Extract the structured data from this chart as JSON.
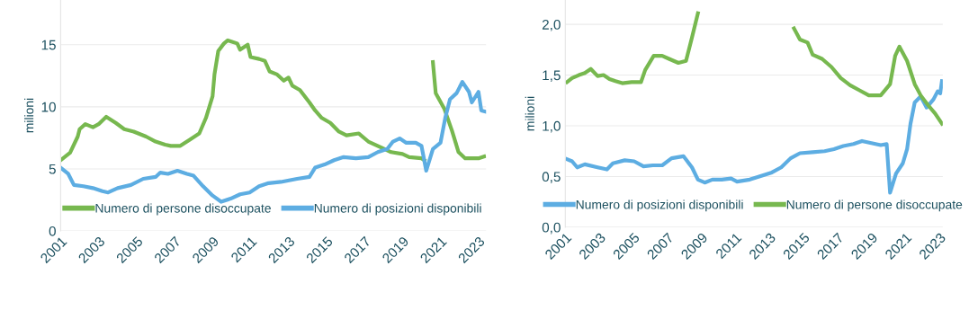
{
  "chart_data": [
    {
      "type": "line",
      "ylabel": "milioni",
      "xlim": [
        2001,
        2023.4
      ],
      "ylim": [
        0,
        18.6
      ],
      "xticks": [
        2001,
        2003,
        2005,
        2007,
        2009,
        2011,
        2013,
        2015,
        2017,
        2019,
        2021,
        2023
      ],
      "yticks": [
        0,
        5,
        10,
        15
      ],
      "grid": "y",
      "legend": "bottom",
      "line_style": "solid",
      "marker": "none",
      "series": [
        {
          "name": "Numero di persone disoccupate",
          "color": "#77b84f",
          "x": [
            2001,
            2001.5,
            2001.9,
            2002.0,
            2002.3,
            2002.7,
            2003.0,
            2003.4,
            2003.9,
            2004.35,
            2004.85,
            2005.5,
            2006.0,
            2006.5,
            2006.8,
            2007.3,
            2007.8,
            2008.3,
            2008.65,
            2009.0,
            2009.1,
            2009.3,
            2009.6,
            2009.8,
            2010.3,
            2010.45,
            2010.85,
            2011.0,
            2011.45,
            2011.75,
            2012.0,
            2012.4,
            2012.75,
            2013.0,
            2013.2,
            2013.6,
            2014.1,
            2014.4,
            2014.75,
            2015.2,
            2015.65,
            2016.05,
            2016.7,
            2017.2,
            2017.9,
            2018.4,
            2019.0,
            2019.35,
            2020.0,
            2020.15,
            2020.2,
            2020.4,
            2020.6,
            2020.75,
            2021.2,
            2021.6,
            2021.95,
            2022.3,
            2022.7,
            2023.0,
            2023.3
          ],
          "values": [
            5.7,
            6.3,
            7.6,
            8.2,
            8.6,
            8.35,
            8.6,
            9.2,
            8.7,
            8.2,
            8.0,
            7.6,
            7.2,
            6.95,
            6.85,
            6.85,
            7.35,
            7.85,
            9.1,
            10.85,
            12.6,
            14.5,
            15.1,
            15.35,
            15.1,
            14.6,
            15.0,
            14.0,
            13.85,
            13.7,
            12.85,
            12.6,
            12.1,
            12.35,
            11.7,
            11.35,
            10.35,
            9.7,
            9.1,
            8.7,
            8.0,
            7.7,
            7.85,
            7.2,
            6.7,
            6.35,
            6.2,
            5.95,
            5.85,
            5.7,
            null,
            null,
            13.6,
            11.1,
            9.85,
            8.1,
            6.35,
            5.85,
            5.85,
            5.85,
            6.0
          ]
        },
        {
          "name": "Numero di posizioni disponibili",
          "color": "#5dade2",
          "x": [
            2001,
            2001.4,
            2001.7,
            2002.2,
            2002.7,
            2003.2,
            2003.5,
            2004.0,
            2004.7,
            2005.35,
            2006.0,
            2006.25,
            2006.65,
            2007.15,
            2007.65,
            2008.0,
            2008.5,
            2009.0,
            2009.45,
            2009.95,
            2010.45,
            2010.95,
            2011.45,
            2011.95,
            2012.6,
            2013.45,
            2014.1,
            2014.4,
            2014.9,
            2015.4,
            2015.9,
            2016.55,
            2017.2,
            2017.7,
            2018.2,
            2018.5,
            2018.85,
            2019.2,
            2019.7,
            2020.0,
            2020.25,
            2020.6,
            2021.0,
            2021.25,
            2021.5,
            2021.85,
            2022.15,
            2022.5,
            2022.65,
            2023.0,
            2023.15,
            2023.4
          ],
          "values": [
            5.1,
            4.6,
            3.7,
            3.6,
            3.45,
            3.2,
            3.1,
            3.45,
            3.7,
            4.2,
            4.35,
            4.7,
            4.6,
            4.85,
            4.6,
            4.45,
            3.6,
            2.85,
            2.35,
            2.6,
            2.95,
            3.1,
            3.6,
            3.85,
            3.95,
            4.2,
            4.35,
            5.1,
            5.35,
            5.7,
            5.95,
            5.85,
            5.95,
            6.35,
            6.6,
            7.2,
            7.45,
            7.1,
            7.1,
            6.85,
            4.85,
            6.6,
            7.1,
            9.1,
            10.6,
            11.1,
            12.0,
            11.2,
            10.35,
            11.2,
            9.7,
            9.6
          ]
        }
      ]
    },
    {
      "type": "line",
      "ylabel": "milioni",
      "xlim": [
        2001,
        2023.2
      ],
      "ylim": [
        0,
        2.24
      ],
      "xticks": [
        2001,
        2003,
        2005,
        2007,
        2009,
        2011,
        2013,
        2015,
        2017,
        2019,
        2021,
        2023
      ],
      "yticks": [
        {
          "value": 0,
          "label": "0,0"
        },
        {
          "value": 0.5,
          "label": "0,5"
        },
        {
          "value": 1,
          "label": "1,0"
        },
        {
          "value": 1.5,
          "label": "1,5"
        },
        {
          "value": 2,
          "label": "2,0"
        }
      ],
      "grid": "y",
      "legend": "bottom",
      "line_style": "solid",
      "marker": "none",
      "series": [
        {
          "name": "Numero di posizioni disponibili",
          "color": "#5dade2",
          "x": [
            2001.1,
            2001.4,
            2001.7,
            2002.15,
            2002.9,
            2003.45,
            2003.8,
            2004.5,
            2005.05,
            2005.6,
            2006.15,
            2006.7,
            2007.25,
            2007.95,
            2008.45,
            2008.8,
            2009.2,
            2009.65,
            2010.2,
            2010.75,
            2011.1,
            2011.85,
            2012.4,
            2013.15,
            2013.7,
            2014.25,
            2014.8,
            2015.55,
            2016.25,
            2016.8,
            2017.35,
            2017.95,
            2018.45,
            2019.0,
            2019.55,
            2019.9,
            2020.1,
            2020.45,
            2020.85,
            2021.1,
            2021.3,
            2021.55,
            2021.9,
            2022.25,
            2022.65,
            2022.9,
            2023.05,
            2023.15
          ],
          "values": [
            0.67,
            0.65,
            0.59,
            0.62,
            0.59,
            0.57,
            0.63,
            0.66,
            0.65,
            0.6,
            0.61,
            0.61,
            0.68,
            0.7,
            0.59,
            0.47,
            0.44,
            0.47,
            0.47,
            0.48,
            0.45,
            0.47,
            0.5,
            0.54,
            0.59,
            0.68,
            0.73,
            0.74,
            0.75,
            0.77,
            0.8,
            0.82,
            0.85,
            0.83,
            0.81,
            0.82,
            0.34,
            0.53,
            0.63,
            0.77,
            1.02,
            1.23,
            1.29,
            1.18,
            1.26,
            1.34,
            1.32,
            1.44
          ]
        },
        {
          "name": "Numero di persone disoccupate",
          "color": "#77b84f",
          "x": [
            2001.1,
            2001.4,
            2001.8,
            2002.15,
            2002.5,
            2002.9,
            2003.25,
            2003.6,
            2003.95,
            2004.35,
            2004.9,
            2005.45,
            2005.7,
            2006.2,
            2006.7,
            2007.1,
            2007.65,
            2008.1,
            2008.45,
            2008.8,
            2009.05,
            2013.9,
            2014.45,
            2014.8,
            2015.25,
            2015.55,
            2016.1,
            2016.65,
            2017.2,
            2017.75,
            2018.3,
            2018.85,
            2019.55,
            2020.1,
            2020.4,
            2020.65,
            2021.1,
            2021.55,
            2021.9,
            2022.3,
            2022.75,
            2023.15
          ],
          "values": [
            1.43,
            1.47,
            1.5,
            1.52,
            1.56,
            1.49,
            1.5,
            1.46,
            1.44,
            1.42,
            1.43,
            1.43,
            1.55,
            1.69,
            1.69,
            1.66,
            1.62,
            1.64,
            1.87,
            2.11,
            null,
            null,
            1.96,
            1.85,
            1.82,
            1.7,
            1.66,
            1.58,
            1.47,
            1.4,
            1.35,
            1.3,
            1.3,
            1.41,
            1.69,
            1.78,
            1.64,
            1.41,
            1.3,
            1.21,
            1.12,
            1.02
          ]
        }
      ]
    }
  ]
}
